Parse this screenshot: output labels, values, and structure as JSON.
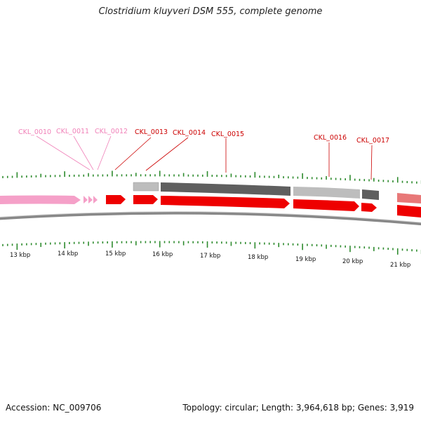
{
  "title": "Clostridium kluyveri DSM 555, complete genome",
  "footer": {
    "accession": "Accession: NC_009706",
    "summary": "Topology: circular; Length: 3,964,618 bp; Genes: 3,919"
  },
  "colors": {
    "gene_pink": "#f5a0c8",
    "gene_red": "#ee0000",
    "label_pink": "#f080b8",
    "label_red": "#cc0000",
    "tick_green": "#2e8b2e",
    "feature_light_gray": "#bdbdbd",
    "feature_dark_gray": "#5f5f5f",
    "backbone": "#888888"
  },
  "ticks": {
    "labels": [
      "13 kbp",
      "14 kbp",
      "15 kbp",
      "16 kbp",
      "17 kbp",
      "18 kbp",
      "19 kbp",
      "20 kbp",
      "21 kbp"
    ]
  },
  "genes": [
    {
      "id": "CKL_0010",
      "color": "pink"
    },
    {
      "id": "CKL_0011",
      "color": "pink"
    },
    {
      "id": "CKL_0012",
      "color": "pink"
    },
    {
      "id": "CKL_0013",
      "color": "red"
    },
    {
      "id": "CKL_0014",
      "color": "red"
    },
    {
      "id": "CKL_0015",
      "color": "red"
    },
    {
      "id": "CKL_0016",
      "color": "red"
    },
    {
      "id": "CKL_0017",
      "color": "red"
    }
  ]
}
